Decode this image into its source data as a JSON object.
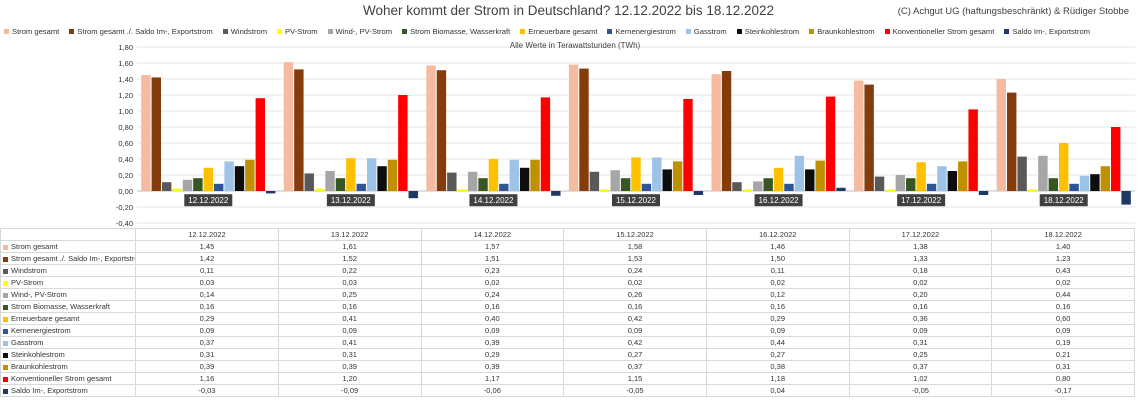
{
  "title": "Woher kommt der Strom in Deutschland? 12.12.2022 bis 18.12.2022",
  "credit": "(C) Achgut UG (haftungsbeschränkt) & Rüdiger Stobbe",
  "chart_data": {
    "type": "bar",
    "subtitle": "Alle Werte in Terawattstunden (TWh)",
    "categories": [
      "12.12.2022",
      "13.12.2022",
      "14.12.2022",
      "15.12.2022",
      "16.12.2022",
      "17.12.2022",
      "18.12.2022"
    ],
    "ylim": [
      -0.4,
      1.8
    ],
    "yticks": [
      "1,80",
      "1,60",
      "1,40",
      "1,20",
      "1,00",
      "0,80",
      "0,60",
      "0,40",
      "0,20",
      "0,00",
      "-0,20",
      "-0,40"
    ],
    "grid": true,
    "legend_position": "top",
    "series": [
      {
        "name": "Strom gesamt",
        "color": "#f4bba0",
        "values": [
          1.45,
          1.61,
          1.57,
          1.58,
          1.46,
          1.38,
          1.4
        ],
        "labels": [
          "1,45",
          "1,61",
          "1,57",
          "1,58",
          "1,46",
          "1,38",
          "1,40"
        ]
      },
      {
        "name": "Strom gesamt ./. Saldo Im-, Exportstrom",
        "color": "#843c0c",
        "values": [
          1.42,
          1.52,
          1.51,
          1.53,
          1.5,
          1.33,
          1.23
        ],
        "labels": [
          "1,42",
          "1,52",
          "1,51",
          "1,53",
          "1,50",
          "1,33",
          "1,23"
        ]
      },
      {
        "name": "Windstrom",
        "color": "#595959",
        "values": [
          0.11,
          0.22,
          0.23,
          0.24,
          0.11,
          0.18,
          0.43
        ],
        "labels": [
          "0,11",
          "0,22",
          "0,23",
          "0,24",
          "0,11",
          "0,18",
          "0,43"
        ]
      },
      {
        "name": "PV-Strom",
        "color": "#ffff00",
        "values": [
          0.03,
          0.03,
          0.02,
          0.02,
          0.02,
          0.02,
          0.02
        ],
        "labels": [
          "0,03",
          "0,03",
          "0,02",
          "0,02",
          "0,02",
          "0,02",
          "0,02"
        ]
      },
      {
        "name": "Wind-, PV-Strom",
        "color": "#a6a6a6",
        "values": [
          0.14,
          0.25,
          0.24,
          0.26,
          0.12,
          0.2,
          0.44
        ],
        "labels": [
          "0,14",
          "0,25",
          "0,24",
          "0,26",
          "0,12",
          "0,20",
          "0,44"
        ]
      },
      {
        "name": "Strom Biomasse, Wasserkraft",
        "color": "#375623",
        "values": [
          0.16,
          0.16,
          0.16,
          0.16,
          0.16,
          0.16,
          0.16
        ],
        "labels": [
          "0,16",
          "0,16",
          "0,16",
          "0,16",
          "0,16",
          "0,16",
          "0,16"
        ]
      },
      {
        "name": "Erneuerbare gesamt",
        "color": "#ffc000",
        "values": [
          0.29,
          0.41,
          0.4,
          0.42,
          0.29,
          0.36,
          0.6
        ],
        "labels": [
          "0,29",
          "0,41",
          "0,40",
          "0,42",
          "0,29",
          "0,36",
          "0,60"
        ]
      },
      {
        "name": "Kernenergiestrom",
        "color": "#2f5597",
        "values": [
          0.09,
          0.09,
          0.09,
          0.09,
          0.09,
          0.09,
          0.09
        ],
        "labels": [
          "0,09",
          "0,09",
          "0,09",
          "0,09",
          "0,09",
          "0,09",
          "0,09"
        ]
      },
      {
        "name": "Gasstrom",
        "color": "#9dc3e6",
        "values": [
          0.37,
          0.41,
          0.39,
          0.42,
          0.44,
          0.31,
          0.19
        ],
        "labels": [
          "0,37",
          "0,41",
          "0,39",
          "0,42",
          "0,44",
          "0,31",
          "0,19"
        ]
      },
      {
        "name": "Steinkohlestrom",
        "color": "#0d0d0d",
        "values": [
          0.31,
          0.31,
          0.29,
          0.27,
          0.27,
          0.25,
          0.21
        ],
        "labels": [
          "0,31",
          "0,31",
          "0,29",
          "0,27",
          "0,27",
          "0,25",
          "0,21"
        ]
      },
      {
        "name": "Braunkohlestrom",
        "color": "#bf9000",
        "values": [
          0.39,
          0.39,
          0.39,
          0.37,
          0.38,
          0.37,
          0.31
        ],
        "labels": [
          "0,39",
          "0,39",
          "0,39",
          "0,37",
          "0,38",
          "0,37",
          "0,31"
        ]
      },
      {
        "name": "Konventioneller Strom gesamt",
        "color": "#ff0000",
        "values": [
          1.16,
          1.2,
          1.17,
          1.15,
          1.18,
          1.02,
          0.8
        ],
        "labels": [
          "1,16",
          "1,20",
          "1,17",
          "1,15",
          "1,18",
          "1,02",
          "0,80"
        ]
      },
      {
        "name": "Saldo Im-, Exportstrom",
        "color": "#1f3864",
        "values": [
          -0.03,
          -0.09,
          -0.06,
          -0.05,
          0.04,
          -0.05,
          -0.17
        ],
        "labels": [
          "-0,03",
          "-0,09",
          "-0,06",
          "-0,05",
          "0,04",
          "-0,05",
          "-0,17"
        ]
      }
    ]
  }
}
